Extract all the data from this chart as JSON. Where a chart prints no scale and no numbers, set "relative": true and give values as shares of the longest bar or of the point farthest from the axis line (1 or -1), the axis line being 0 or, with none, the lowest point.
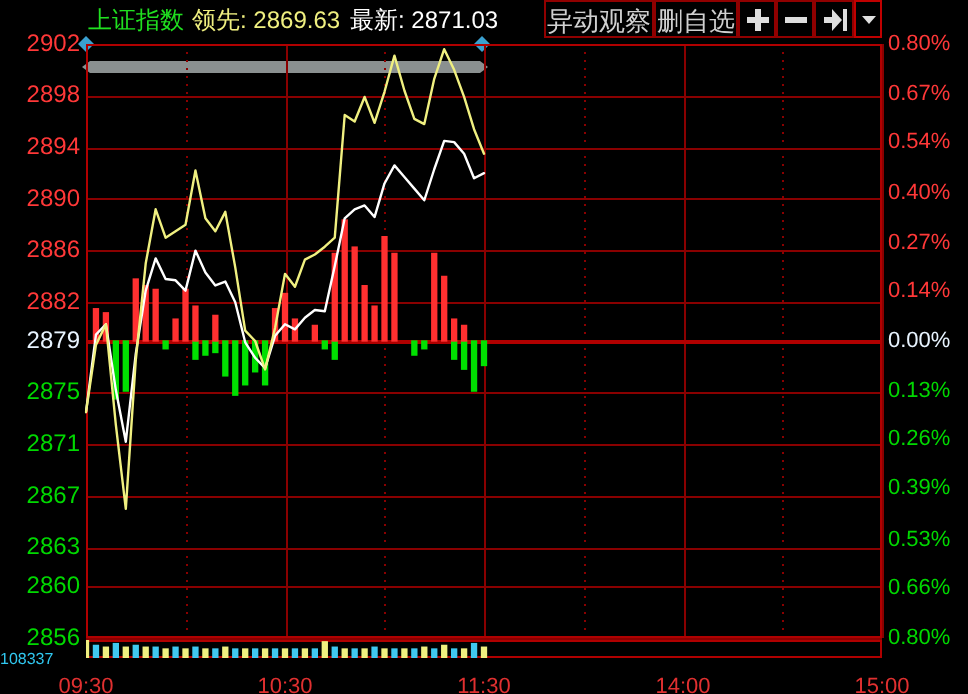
{
  "chart_data": [
    {
      "type": "line",
      "title": "上证指数",
      "annotations": [
        "领先: 2869.63",
        "最新: 2871.03",
        "异动观察",
        "删自选"
      ],
      "categories": [
        "09:30",
        null,
        null,
        null,
        null,
        null,
        null,
        null,
        null,
        null,
        null,
        null,
        null,
        null,
        null,
        null,
        null,
        null,
        null,
        null,
        "10:30",
        null,
        null,
        null,
        null,
        null,
        null,
        null,
        null,
        null,
        null,
        null,
        null,
        null,
        null,
        null,
        null,
        null,
        null,
        null,
        "11:30",
        null,
        null,
        null,
        null,
        null,
        null,
        null,
        null,
        null,
        null,
        null,
        null,
        null,
        null,
        null,
        null,
        null,
        null,
        null,
        "14:00",
        null,
        null,
        null,
        null,
        null,
        null,
        null,
        null,
        null,
        null,
        null,
        null,
        null,
        null,
        null,
        null,
        null,
        null,
        null,
        "15:00"
      ],
      "ylim": [
        2856,
        2902
      ],
      "yticks": [
        2856,
        2860,
        2863,
        2867,
        2871,
        2875,
        2879,
        2882,
        2886,
        2890,
        2894,
        2898,
        2902
      ],
      "y2lim": [
        -0.8,
        0.8
      ],
      "y2ticks": [
        {
          "value": -0.8,
          "label": "0.80%"
        },
        {
          "value": -0.665,
          "label": "0.66%"
        },
        {
          "value": -0.535,
          "label": "0.53%"
        },
        {
          "value": -0.395,
          "label": "0.39%"
        },
        {
          "value": -0.265,
          "label": "0.26%"
        },
        {
          "value": -0.135,
          "label": "0.13%"
        },
        {
          "value": 0,
          "label": "0.00%"
        },
        {
          "value": 0.135,
          "label": "0.14%"
        },
        {
          "value": 0.265,
          "label": "0.27%"
        },
        {
          "value": 0.4,
          "label": "0.40%"
        },
        {
          "value": 0.535,
          "label": "0.54%"
        },
        {
          "value": 0.665,
          "label": "0.67%"
        },
        {
          "value": 0.8,
          "label": "0.80%"
        }
      ],
      "grid": true,
      "legend": false,
      "marker": "none",
      "ref_lines": [
        {
          "axis": "y2",
          "value": 0,
          "color": "#b00000"
        }
      ],
      "series": [
        {
          "type": "line",
          "color": "#f0f080",
          "values": [
            2873.5,
            2878.7,
            2880.3,
            2872.5,
            2866.0,
            2877.5,
            2885.0,
            2889.2,
            2887.0,
            2887.5,
            2888.0,
            2892.2,
            2888.5,
            2887.5,
            2889.0,
            2884.7,
            2879.8,
            2879.0,
            2876.8,
            2880.0,
            2884.2,
            2883.2,
            2885.3,
            2885.7,
            2886.3,
            2887.0,
            2896.5,
            2896.0,
            2897.9,
            2895.9,
            2898.3,
            2901.1,
            2898.4,
            2896.2,
            2895.8,
            2899.3,
            2901.6,
            2900.0,
            2897.9,
            2895.4,
            2893.5,
            null,
            null,
            null,
            null,
            null,
            null,
            null,
            null,
            null,
            null,
            null,
            null,
            null,
            null,
            null,
            null,
            null,
            null,
            null,
            null,
            null,
            null,
            null,
            null,
            null,
            null,
            null,
            null,
            null,
            null,
            null,
            null,
            null,
            null,
            null,
            null,
            null,
            null,
            null,
            null
          ]
        },
        {
          "type": "line",
          "color": "#ffffff",
          "values": [
            2873.5,
            2879.5,
            2880.3,
            2875.2,
            2871.2,
            2878.0,
            2882.9,
            2885.4,
            2883.8,
            2883.7,
            2882.9,
            2886.0,
            2884.3,
            2883.3,
            2883.6,
            2882.0,
            2878.9,
            2877.7,
            2876.9,
            2879.4,
            2880.3,
            2879.9,
            2880.8,
            2881.4,
            2881.3,
            2884.8,
            2888.5,
            2889.2,
            2889.5,
            2888.6,
            2891.2,
            2892.6,
            2891.7,
            2890.8,
            2889.9,
            2892.3,
            2894.5,
            2894.4,
            2893.5,
            2891.6,
            2892.0,
            null,
            null,
            null,
            null,
            null,
            null,
            null,
            null,
            null,
            null,
            null,
            null,
            null,
            null,
            null,
            null,
            null,
            null,
            null,
            null,
            null,
            null,
            null,
            null,
            null,
            null,
            null,
            null,
            null,
            null,
            null,
            null,
            null,
            null,
            null,
            null,
            null,
            null,
            null,
            null
          ]
        },
        {
          "type": "bar",
          "axis": "y2",
          "color": "#ff3030",
          "values": [
            null,
            0.087,
            0.076,
            null,
            null,
            0.167,
            0.149,
            0.139,
            null,
            0.059,
            0.139,
            0.094,
            null,
            0.069,
            null,
            null,
            null,
            null,
            null,
            0.087,
            0.128,
            0.059,
            null,
            0.042,
            null,
            0.236,
            0.326,
            0.253,
            0.149,
            0.094,
            0.281,
            0.236,
            null,
            null,
            null,
            0.236,
            0.174,
            0.059,
            0.042,
            null,
            null,
            null,
            null,
            null,
            null,
            null,
            null,
            null,
            null,
            null,
            null,
            null,
            null,
            null,
            null,
            null,
            null,
            null,
            null,
            null,
            null,
            null,
            null,
            null,
            null,
            null,
            null,
            null,
            null,
            null,
            null,
            null,
            null,
            null,
            null,
            null,
            null,
            null,
            null,
            null,
            null
          ]
        },
        {
          "type": "bar",
          "axis": "y2",
          "color": "#00e000",
          "values": [
            null,
            null,
            null,
            -0.156,
            -0.135,
            null,
            null,
            null,
            -0.021,
            null,
            null,
            -0.049,
            -0.038,
            -0.031,
            -0.094,
            -0.146,
            -0.118,
            -0.083,
            -0.118,
            null,
            null,
            null,
            null,
            null,
            -0.021,
            -0.049,
            null,
            null,
            null,
            null,
            null,
            null,
            null,
            -0.038,
            -0.021,
            null,
            null,
            -0.049,
            -0.076,
            -0.135,
            -0.066,
            null,
            null,
            null,
            null,
            null,
            null,
            null,
            null,
            null,
            null,
            null,
            null,
            null,
            null,
            null,
            null,
            null,
            null,
            null,
            null,
            null,
            null,
            null,
            null,
            null,
            null,
            null,
            null,
            null,
            null,
            null,
            null,
            null,
            null,
            null,
            null,
            null,
            null,
            null,
            null
          ]
        }
      ]
    },
    {
      "type": "bar",
      "relative": true,
      "tick_labels": false,
      "annotations": [
        "108337"
      ],
      "categories": [
        null,
        null,
        null,
        null,
        null,
        null,
        null,
        null,
        null,
        null,
        null,
        null,
        null,
        null,
        null,
        null,
        null,
        null,
        null,
        null,
        null,
        null,
        null,
        null,
        null,
        null,
        null,
        null,
        null,
        null,
        null,
        null,
        null,
        null,
        null,
        null,
        null,
        null,
        null,
        null,
        null,
        null,
        null,
        null,
        null,
        null,
        null,
        null,
        null,
        null,
        null,
        null,
        null,
        null,
        null,
        null,
        null,
        null,
        null,
        null,
        null,
        null,
        null,
        null,
        null,
        null,
        null,
        null,
        null,
        null,
        null,
        null,
        null,
        null,
        null,
        null,
        null,
        null,
        null,
        null,
        null
      ],
      "values": [
        1,
        0.7,
        0.6,
        0.8,
        0.6,
        0.7,
        0.6,
        0.6,
        0.5,
        0.6,
        0.5,
        0.6,
        0.5,
        0.5,
        0.6,
        0.5,
        0.5,
        0.5,
        0.5,
        0.5,
        0.5,
        0.5,
        0.5,
        0.5,
        0.9,
        0.6,
        0.5,
        0.5,
        0.5,
        0.6,
        0.5,
        0.5,
        0.5,
        0.5,
        0.6,
        0.5,
        0.7,
        0.5,
        0.5,
        0.8,
        0.6,
        null,
        null,
        null,
        null,
        null,
        null,
        null,
        null,
        null,
        null,
        null,
        null,
        null,
        null,
        null,
        null,
        null,
        null,
        null,
        null,
        null,
        null,
        null,
        null,
        null,
        null,
        null,
        null,
        null,
        null,
        null,
        null,
        null,
        null,
        null,
        null,
        null,
        null,
        null,
        null
      ],
      "colors": [
        "#f0f080",
        "#40c8f0",
        "#f0f080",
        "#40c8f0",
        "#f0f080",
        "#40c8f0",
        "#f0f080",
        "#40c8f0",
        "#f0f080",
        "#40c8f0",
        "#f0f080",
        "#40c8f0",
        "#f0f080",
        "#40c8f0",
        "#f0f080",
        "#40c8f0",
        "#f0f080",
        "#40c8f0",
        "#f0f080",
        "#40c8f0",
        "#f0f080",
        "#40c8f0",
        "#f0f080",
        "#40c8f0",
        "#f0f080",
        "#40c8f0",
        "#f0f080",
        "#40c8f0",
        "#f0f080",
        "#40c8f0",
        "#f0f080",
        "#40c8f0",
        "#f0f080",
        "#40c8f0",
        "#f0f080",
        "#40c8f0",
        "#f0f080",
        "#40c8f0",
        "#f0f080",
        "#40c8f0",
        "#f0f080",
        "#40c8f0",
        "#f0f080",
        "#40c8f0",
        "#f0f080",
        "#40c8f0",
        "#f0f080",
        "#40c8f0",
        "#f0f080",
        "#40c8f0",
        "#f0f080",
        "#40c8f0",
        "#f0f080",
        "#40c8f0",
        "#f0f080",
        "#40c8f0",
        "#f0f080",
        "#40c8f0",
        "#f0f080",
        "#40c8f0",
        "#f0f080",
        "#40c8f0",
        "#f0f080",
        "#40c8f0",
        "#f0f080",
        "#40c8f0",
        "#f0f080",
        "#40c8f0",
        "#f0f080",
        "#40c8f0",
        "#f0f080",
        "#40c8f0",
        "#f0f080",
        "#40c8f0",
        "#f0f080",
        "#40c8f0",
        "#f0f080",
        "#40c8f0",
        "#f0f080",
        "#40c8f0",
        "#f0f080"
      ]
    }
  ]
}
